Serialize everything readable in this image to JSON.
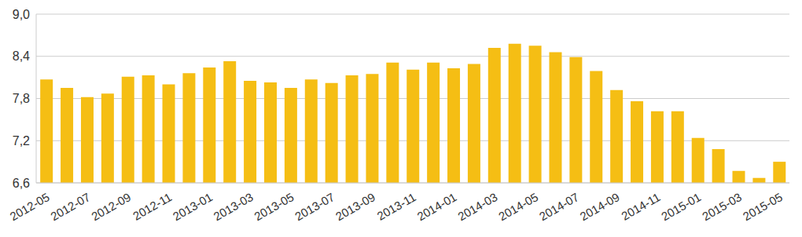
{
  "chart_data": {
    "type": "bar",
    "categories": [
      "2012-05",
      null,
      "2012-07",
      null,
      "2012-09",
      null,
      "2012-11",
      null,
      "2013-01",
      null,
      "2013-03",
      null,
      "2013-05",
      null,
      "2013-07",
      null,
      "2013-09",
      null,
      "2013-11",
      null,
      "2014-01",
      null,
      "2014-03",
      null,
      "2014-05",
      null,
      "2014-07",
      null,
      "2014-09",
      null,
      "2014-11",
      null,
      "2015-01",
      null,
      "2015-03",
      null,
      "2015-05"
    ],
    "values": [
      8.07,
      7.95,
      7.82,
      7.87,
      8.11,
      8.13,
      8.0,
      8.16,
      8.24,
      8.33,
      8.05,
      8.03,
      7.95,
      8.07,
      8.02,
      8.13,
      8.15,
      8.31,
      8.21,
      8.31,
      8.23,
      8.29,
      8.52,
      8.58,
      8.55,
      8.46,
      8.39,
      8.19,
      7.92,
      7.76,
      7.62,
      7.62,
      7.24,
      7.08,
      6.77,
      6.67,
      6.9
    ],
    "color": "#f5be14",
    "ylim": [
      6.6,
      9.0
    ],
    "yticks": [
      {
        "value": 6.6,
        "label": "6,6"
      },
      {
        "value": 7.2,
        "label": "7,2"
      },
      {
        "value": 7.8,
        "label": "7,8"
      },
      {
        "value": 8.4,
        "label": "8,4"
      },
      {
        "value": 9.0,
        "label": "9,0"
      }
    ],
    "grid": true
  }
}
